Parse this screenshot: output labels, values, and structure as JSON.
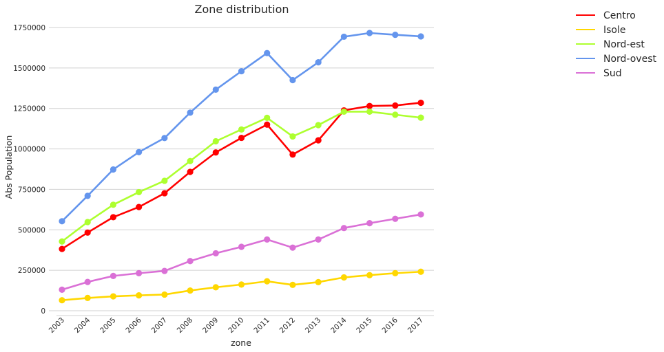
{
  "chart_data": {
    "type": "line",
    "title": "Zone distribution",
    "xlabel": "zone",
    "ylabel": "Abs Population",
    "x": [
      "2003",
      "2004",
      "2005",
      "2006",
      "2007",
      "2008",
      "2009",
      "2010",
      "2011",
      "2012",
      "2013",
      "2014",
      "2015",
      "2016",
      "2017"
    ],
    "ylim": [
      0,
      1800000
    ],
    "yticks": [
      0,
      250000,
      500000,
      750000,
      1000000,
      1250000,
      1500000,
      1750000
    ],
    "ytick_labels": [
      "0",
      "250000",
      "500000",
      "750000",
      "1000000",
      "1250000",
      "1500000",
      "1750000"
    ],
    "grid": "horizontal",
    "legend_position": "outside-top-right",
    "series": [
      {
        "name": "Centro",
        "color": "#ff0000",
        "values": [
          382000,
          483000,
          578000,
          641000,
          726000,
          858000,
          978000,
          1068000,
          1150000,
          965000,
          1053000,
          1238000,
          1265000,
          1268000,
          1285000
        ]
      },
      {
        "name": "Isole",
        "color": "#ffd700",
        "values": [
          65000,
          79000,
          89000,
          95000,
          100000,
          125000,
          145000,
          162000,
          182000,
          160000,
          177000,
          206000,
          220000,
          232000,
          241000
        ]
      },
      {
        "name": "Nord-est",
        "color": "#adff2f",
        "values": [
          428000,
          548000,
          655000,
          733000,
          803000,
          925000,
          1047000,
          1120000,
          1192000,
          1077000,
          1147000,
          1230000,
          1230000,
          1211000,
          1193000
        ]
      },
      {
        "name": "Nord-ovest",
        "color": "#6495ed",
        "values": [
          553000,
          710000,
          873000,
          980000,
          1067000,
          1224000,
          1366000,
          1480000,
          1592000,
          1425000,
          1535000,
          1693000,
          1716000,
          1705000,
          1695000
        ]
      },
      {
        "name": "Sud",
        "color": "#da70d6",
        "values": [
          130000,
          178000,
          215000,
          232000,
          246000,
          307000,
          355000,
          395000,
          440000,
          390000,
          440000,
          511000,
          541000,
          568000,
          595000
        ]
      }
    ]
  }
}
